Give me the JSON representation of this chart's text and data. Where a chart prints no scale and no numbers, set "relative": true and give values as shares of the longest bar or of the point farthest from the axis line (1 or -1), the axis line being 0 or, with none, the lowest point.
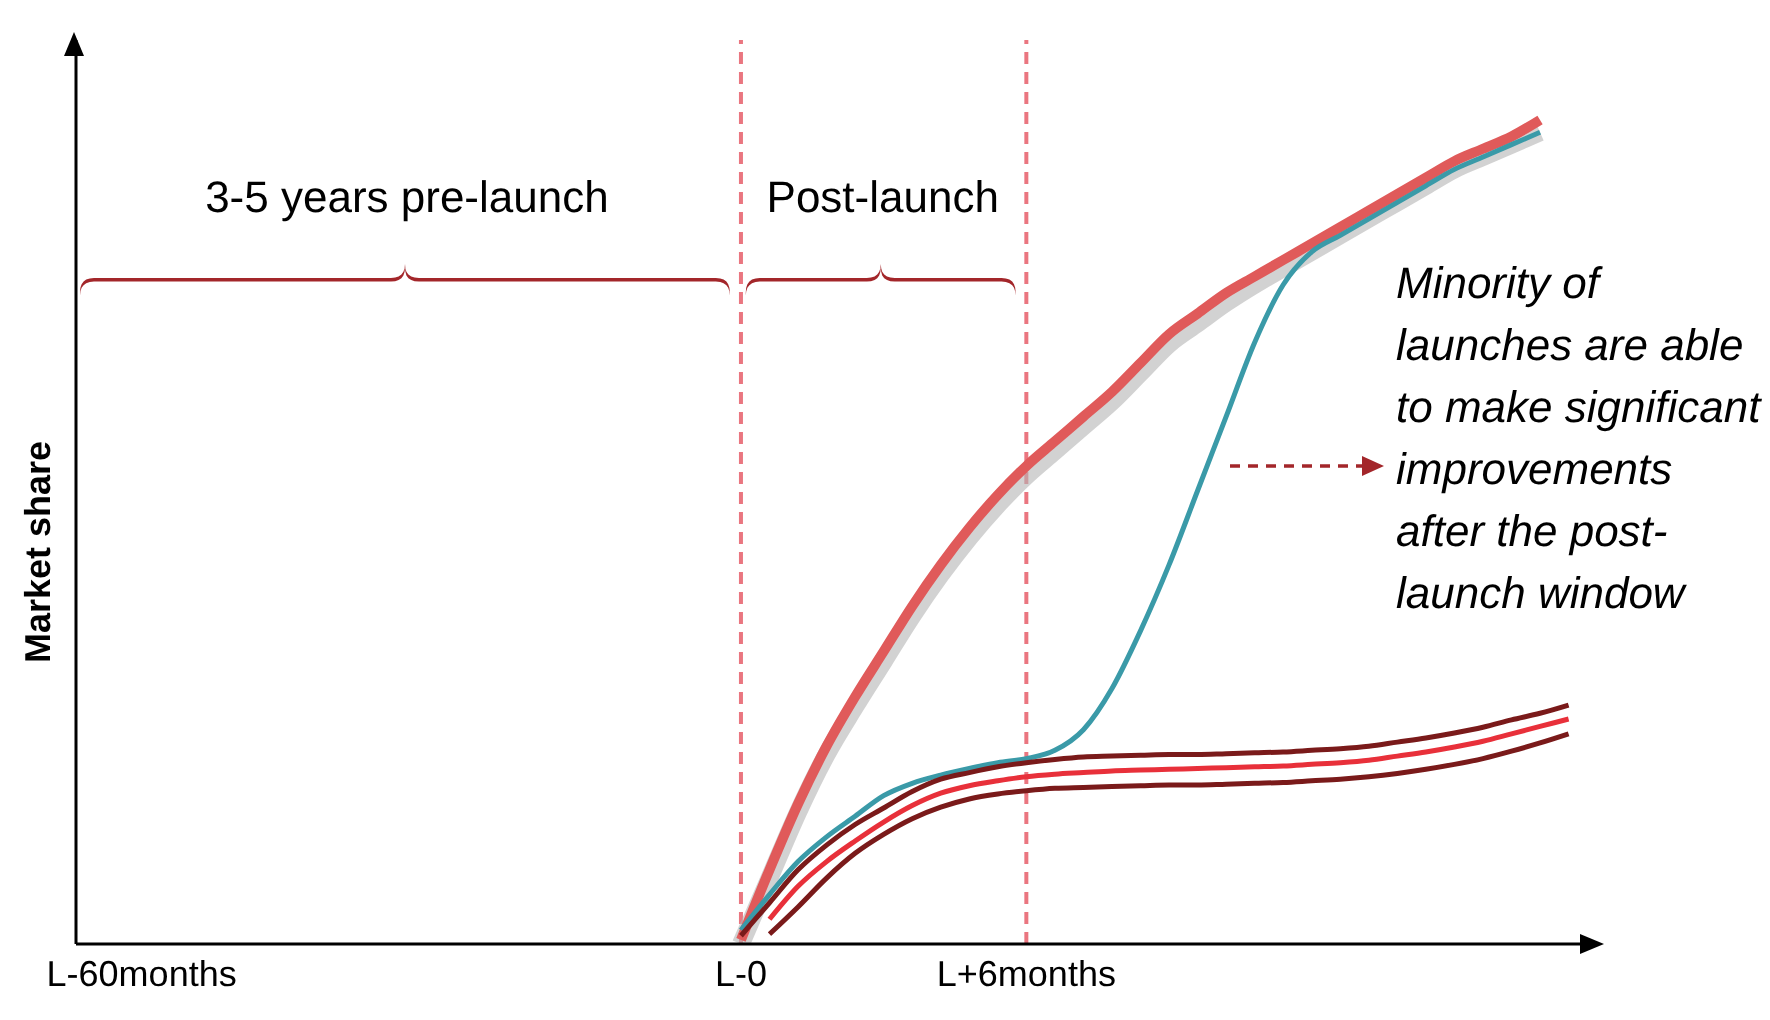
{
  "chart_data": {
    "type": "line",
    "relative": true,
    "ylabel": "Market share",
    "categories": [
      "L-60months",
      null,
      null,
      null,
      null,
      null,
      null,
      null,
      null,
      null,
      null,
      null,
      null,
      null,
      null,
      null,
      null,
      null,
      null,
      null,
      null,
      "L-0",
      null,
      null,
      null,
      null,
      null,
      null,
      null,
      null,
      null,
      "L+6months",
      null,
      null,
      null,
      null,
      null,
      null,
      null,
      null,
      null,
      null,
      null,
      null,
      null,
      null,
      null,
      null,
      null,
      null,
      null
    ],
    "grid": false,
    "legend": false,
    "marker": "none",
    "line_style": "solid",
    "ref_lines": [
      {
        "axis": "x",
        "value": "L-0",
        "color": "#ea7680",
        "line_style": "dashed"
      },
      {
        "axis": "x",
        "value": "L+6months",
        "color": "#ea7680",
        "line_style": "dashed"
      }
    ],
    "annotations": [
      "3-5 years pre-launch",
      "Post-launch",
      "Minority of launches are able to make significant improvements after the post-launch window"
    ],
    "series": [
      {
        "color": "#b4b4b4",
        "values": [
          null,
          null,
          null,
          null,
          null,
          null,
          null,
          null,
          null,
          null,
          null,
          null,
          null,
          null,
          null,
          null,
          null,
          null,
          null,
          null,
          null,
          0.0,
          0.08,
          0.16,
          0.23,
          0.288,
          0.343,
          0.398,
          0.448,
          0.493,
          0.533,
          0.568,
          0.598,
          0.628,
          0.658,
          0.693,
          0.728,
          0.753,
          0.778,
          0.8,
          0.82,
          0.84,
          0.86,
          0.88,
          0.9,
          0.92,
          0.94,
          0.955,
          0.97,
          0.985,
          null
        ]
      },
      {
        "color": "#e05a5a",
        "values": [
          null,
          null,
          null,
          null,
          null,
          null,
          null,
          null,
          null,
          null,
          null,
          null,
          null,
          null,
          null,
          null,
          null,
          null,
          null,
          null,
          null,
          0.005,
          0.09,
          0.17,
          0.24,
          0.3,
          0.355,
          0.41,
          0.46,
          0.505,
          0.545,
          0.58,
          0.61,
          0.64,
          0.67,
          0.705,
          0.74,
          0.765,
          0.79,
          0.81,
          0.83,
          0.85,
          0.87,
          0.89,
          0.91,
          0.93,
          0.95,
          0.965,
          0.98,
          1.0,
          null
        ]
      },
      {
        "color": "#3a9aa8",
        "values": [
          null,
          null,
          null,
          null,
          null,
          null,
          null,
          null,
          null,
          null,
          null,
          null,
          null,
          null,
          null,
          null,
          null,
          null,
          null,
          null,
          null,
          0.017,
          0.06,
          0.1,
          0.13,
          0.155,
          0.18,
          0.195,
          0.205,
          0.213,
          0.22,
          0.225,
          0.235,
          0.26,
          0.31,
          0.38,
          0.46,
          0.55,
          0.64,
          0.73,
          0.8,
          0.84,
          0.86,
          0.88,
          0.9,
          0.92,
          0.94,
          0.955,
          0.97,
          0.985,
          null
        ]
      },
      {
        "color": "#7a1a1a",
        "values": [
          null,
          null,
          null,
          null,
          null,
          null,
          null,
          null,
          null,
          null,
          null,
          null,
          null,
          null,
          null,
          null,
          null,
          null,
          null,
          null,
          null,
          0.01,
          0.05,
          0.09,
          0.12,
          0.145,
          0.165,
          0.185,
          0.2,
          0.208,
          0.215,
          0.22,
          0.224,
          0.227,
          0.228,
          0.229,
          0.23,
          0.23,
          0.231,
          0.232,
          0.233,
          0.235,
          0.237,
          0.24,
          0.245,
          0.25,
          0.256,
          0.263,
          0.272,
          0.28,
          0.29
        ]
      },
      {
        "color": "#e8303a",
        "values": [
          null,
          null,
          null,
          null,
          null,
          null,
          null,
          null,
          null,
          null,
          null,
          null,
          null,
          null,
          null,
          null,
          null,
          null,
          null,
          null,
          null,
          null,
          0.03,
          0.07,
          0.1,
          0.125,
          0.148,
          0.168,
          0.183,
          0.192,
          0.198,
          0.203,
          0.206,
          0.208,
          0.21,
          0.211,
          0.212,
          0.213,
          0.214,
          0.215,
          0.216,
          0.218,
          0.22,
          0.223,
          0.228,
          0.233,
          0.239,
          0.246,
          0.255,
          0.264,
          0.273
        ]
      },
      {
        "color": "#7a1a1a",
        "values": [
          null,
          null,
          null,
          null,
          null,
          null,
          null,
          null,
          null,
          null,
          null,
          null,
          null,
          null,
          null,
          null,
          null,
          null,
          null,
          null,
          null,
          null,
          0.012,
          0.045,
          0.08,
          0.11,
          0.133,
          0.152,
          0.166,
          0.176,
          0.182,
          0.186,
          0.189,
          0.19,
          0.191,
          0.192,
          0.193,
          0.193,
          0.194,
          0.195,
          0.196,
          0.198,
          0.2,
          0.203,
          0.207,
          0.212,
          0.218,
          0.225,
          0.234,
          0.244,
          0.255
        ]
      }
    ]
  }
}
